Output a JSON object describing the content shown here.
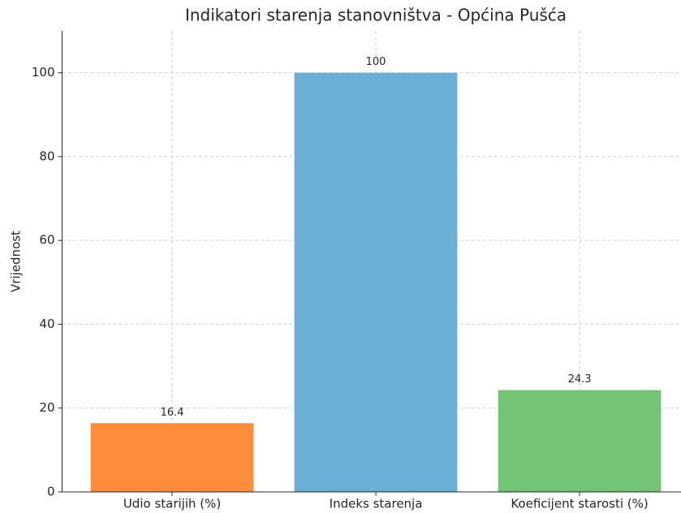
{
  "chart_data": {
    "type": "bar",
    "title": "Indikatori starenja stanovništva - Općina Pušća",
    "ylabel": "Vrijednost",
    "categories": [
      "Udio starijih (%)",
      "Indeks starenja",
      "Koeficijent starosti (%)"
    ],
    "values": [
      16.4,
      100,
      24.3
    ],
    "colors": [
      "#ff8c3a",
      "#6baed6",
      "#74c476"
    ],
    "ylim": [
      0,
      110
    ],
    "yticks": [
      0,
      20,
      40,
      60,
      80,
      100
    ],
    "grid": true
  }
}
